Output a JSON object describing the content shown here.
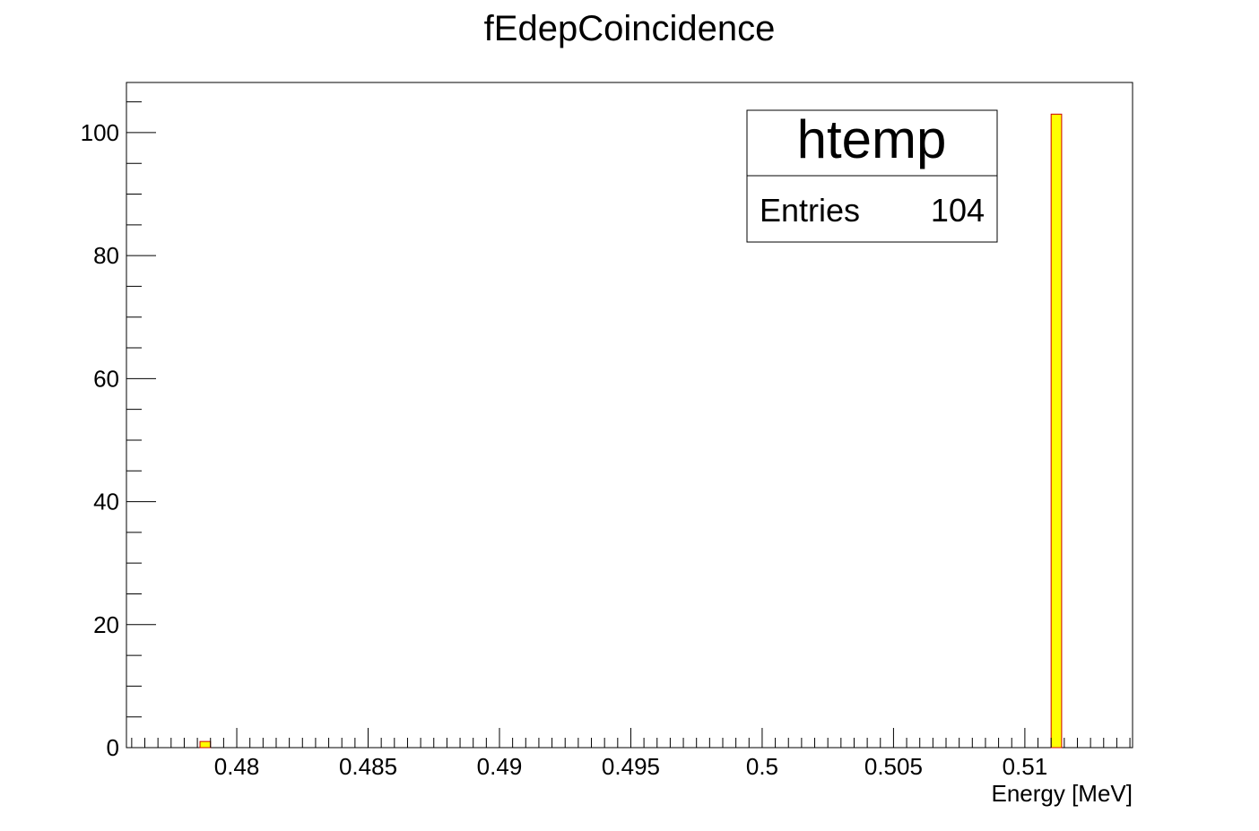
{
  "chart_data": {
    "type": "bar",
    "title": "fEdepCoincidence",
    "xlabel": "Energy [MeV]",
    "ylabel": "",
    "xlim": [
      0.4758,
      0.5141
    ],
    "ylim": [
      0,
      108.15
    ],
    "bin_width": 0.0004,
    "bars": [
      {
        "x_low": 0.4786,
        "x_high": 0.479,
        "value": 1
      },
      {
        "x_low": 0.511,
        "x_high": 0.5114,
        "value": 103
      }
    ],
    "x_ticks": [
      {
        "value": 0.48,
        "label": "0.48"
      },
      {
        "value": 0.485,
        "label": "0.485"
      },
      {
        "value": 0.49,
        "label": "0.49"
      },
      {
        "value": 0.495,
        "label": "0.495"
      },
      {
        "value": 0.5,
        "label": "0.5"
      },
      {
        "value": 0.505,
        "label": "0.505"
      },
      {
        "value": 0.51,
        "label": "0.51"
      }
    ],
    "x_minor_step": 0.0005,
    "y_ticks": [
      {
        "value": 0,
        "label": "0"
      },
      {
        "value": 20,
        "label": "20"
      },
      {
        "value": 40,
        "label": "40"
      },
      {
        "value": 60,
        "label": "60"
      },
      {
        "value": 80,
        "label": "80"
      },
      {
        "value": 100,
        "label": "100"
      }
    ],
    "y_minor_step": 5,
    "bar_fill": "#ffff00",
    "bar_stroke": "#cc0000",
    "grid": false,
    "legend_placement": "top-right",
    "stats": {
      "title": "htemp",
      "entries_label": "Entries",
      "entries_value": "104"
    }
  }
}
